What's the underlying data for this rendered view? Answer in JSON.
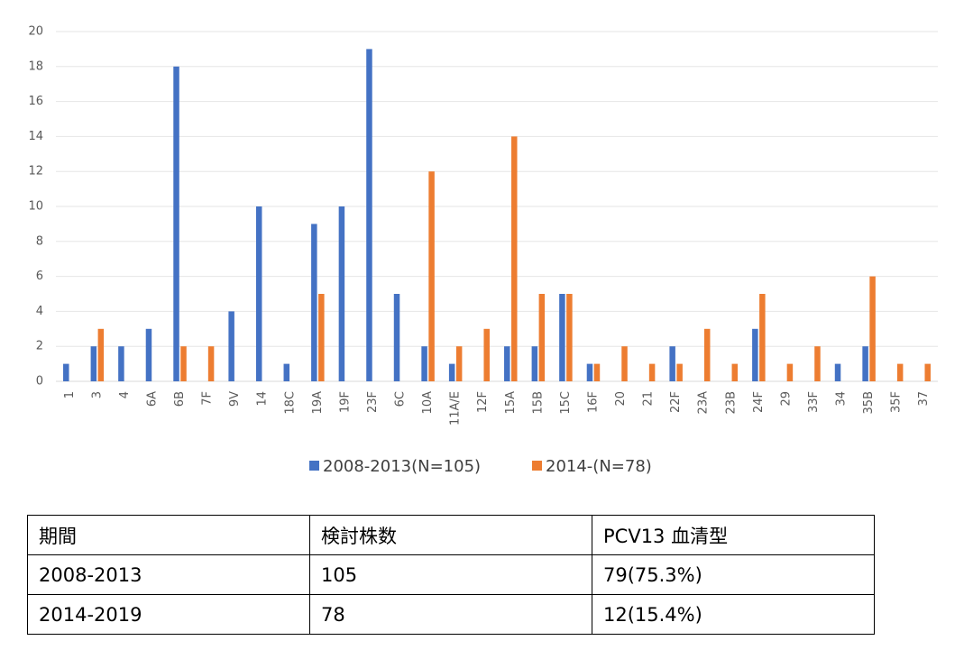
{
  "chart_data": {
    "type": "bar",
    "categories": [
      "1",
      "3",
      "4",
      "6A",
      "6B",
      "7F",
      "9V",
      "14",
      "18C",
      "19A",
      "19F",
      "23F",
      "6C",
      "10A",
      "11A/E",
      "12F",
      "15A",
      "15B",
      "15C",
      "16F",
      "20",
      "21",
      "22F",
      "23A",
      "23B",
      "24F",
      "29",
      "33F",
      "34",
      "35B",
      "35F",
      "37"
    ],
    "series": [
      {
        "name": "2008-2013(N=105)",
        "color": "#4472c4",
        "values": [
          1,
          2,
          2,
          3,
          18,
          0,
          4,
          10,
          1,
          9,
          10,
          19,
          5,
          2,
          1,
          0,
          2,
          2,
          5,
          1,
          0,
          0,
          2,
          0,
          0,
          3,
          0,
          0,
          1,
          2,
          0,
          0
        ]
      },
      {
        "name": "2014-(N=78)",
        "color": "#ed7d31",
        "values": [
          0,
          3,
          0,
          0,
          2,
          2,
          0,
          0,
          0,
          5,
          0,
          0,
          0,
          12,
          2,
          3,
          14,
          5,
          5,
          1,
          2,
          1,
          1,
          3,
          1,
          5,
          1,
          2,
          0,
          6,
          1,
          1
        ]
      }
    ],
    "ylim": [
      0,
      20
    ],
    "yticks": [
      0,
      2,
      4,
      6,
      8,
      10,
      12,
      14,
      16,
      18,
      20
    ],
    "grid": true,
    "legend": "bottom"
  },
  "table": {
    "header": [
      "期間",
      "検討株数",
      "PCV13 血清型"
    ],
    "rows": [
      [
        "2008-2013",
        "105",
        "79(75.3%)"
      ],
      [
        "2014-2019",
        "78",
        "12(15.4%)"
      ]
    ]
  }
}
